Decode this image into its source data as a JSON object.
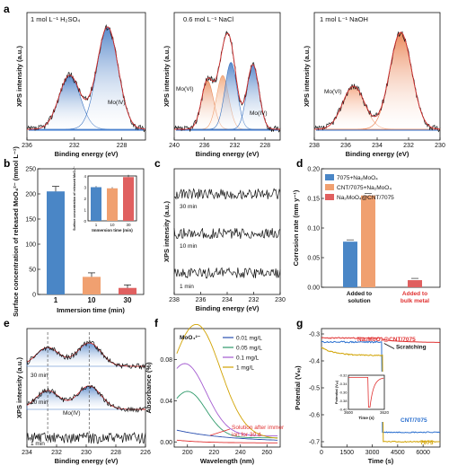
{
  "panels": {
    "a": {
      "label": "a",
      "conditions": [
        "1 mol L⁻¹ H₂SO₄",
        "0.6 mol L⁻¹ NaCl",
        "1 mol L⁻¹ NaOH"
      ],
      "xlabel": "Binding energy (eV)",
      "ylabel": "XPS intensity (a.u.)",
      "annotations": [
        "Mo(IV)",
        "Mo(VI)",
        "Mo(IV)",
        "Mo(VI)"
      ]
    },
    "b": {
      "label": "b",
      "inset_xlabel": "Immersion time (min)",
      "inset_ylabel": "Surface concentration of released MoO₄²⁻"
    },
    "c": {
      "label": "c",
      "xlabel": "Binding energy (eV)",
      "ylabel": "XPS intensity (a.u.)",
      "traces": [
        "30 min",
        "10 min",
        "1 min"
      ]
    },
    "d": {
      "label": "d"
    },
    "e": {
      "label": "e",
      "xlabel": "Binding energy (eV)",
      "ylabel": "XPS intensity (a.u.)",
      "traces": [
        "30 min",
        "10 min",
        "1 min"
      ],
      "annotation": "Mo(IV)"
    },
    "f": {
      "label": "f",
      "xlabel": "Wavelength (nm)",
      "ylabel": "Absorbance (%)",
      "ion": "MoO₄²⁻",
      "annotation": "Solution after immersion for 30 d"
    },
    "g": {
      "label": "g",
      "xlabel": "Time (s)",
      "ylabel": "Potential (Vₛₑ)",
      "inset_xlabel": "Time (s)",
      "inset_ylabel": "Potential (Vₛₑ)",
      "annotation": "Scratching"
    }
  },
  "chart_data": [
    {
      "panel": "a1",
      "type": "line",
      "xlabel": "Binding energy (eV)",
      "ylabel": "XPS intensity (a.u.)",
      "xlim": [
        236,
        226
      ],
      "xticks": [
        236,
        232,
        228
      ],
      "peaks": [
        {
          "name": "Mo(VI)",
          "center": 232.4,
          "height": 0.5
        },
        {
          "name": "Mo(IV)",
          "center": 229.2,
          "height": 0.95
        }
      ]
    },
    {
      "panel": "a2",
      "type": "line",
      "xlabel": "Binding energy (eV)",
      "ylabel": "XPS intensity (a.u.)",
      "xlim": [
        240,
        226
      ],
      "xticks": [
        240,
        236,
        232,
        228
      ],
      "peaks": [
        {
          "name": "Mo(VI)",
          "center": 235.6,
          "height": 0.45
        },
        {
          "name": "Mo(VI)",
          "center": 233.6,
          "height": 0.5
        },
        {
          "name": "Mo(IV)",
          "center": 232.5,
          "height": 0.62
        },
        {
          "name": "Mo(IV)",
          "center": 229.6,
          "height": 0.6
        }
      ]
    },
    {
      "panel": "a3",
      "type": "line",
      "xlabel": "Binding energy (eV)",
      "ylabel": "XPS intensity (a.u.)",
      "xlim": [
        238,
        230
      ],
      "xticks": [
        238,
        236,
        234,
        232,
        230
      ],
      "peaks": [
        {
          "name": "Mo(VI)",
          "center": 235.5,
          "height": 0.4
        },
        {
          "name": "Mo(VI)",
          "center": 232.5,
          "height": 0.9
        }
      ]
    },
    {
      "panel": "b",
      "type": "bar",
      "categories": [
        "1",
        "10",
        "30"
      ],
      "values": [
        205,
        35,
        13
      ],
      "errors": [
        10,
        8,
        6
      ],
      "colors": [
        "#4a86c6",
        "#f0a070",
        "#e06060"
      ],
      "xlabel": "Immersion time (min)",
      "ylabel": "Surface concentration of released MoO₄²⁻ (mmol L⁻¹)",
      "ylim": [
        0,
        250
      ],
      "yticks": [
        0,
        50,
        100,
        150,
        200,
        250
      ],
      "inset": {
        "categories": [
          "1",
          "10",
          "30"
        ],
        "values": [
          3.0,
          2.9,
          3.9
        ],
        "errors": [
          0.1,
          0.1,
          0.2
        ],
        "ylim": [
          0,
          4
        ],
        "yticks": [
          0,
          1,
          2,
          3,
          4
        ]
      }
    },
    {
      "panel": "c",
      "type": "line",
      "xlabel": "Binding energy (eV)",
      "ylabel": "XPS intensity (a.u.)",
      "xlim": [
        238,
        230
      ],
      "xticks": [
        238,
        236,
        234,
        232,
        230
      ],
      "series": [
        "30 min",
        "10 min",
        "1 min"
      ]
    },
    {
      "panel": "d",
      "type": "bar",
      "ylabel": "Corrosion rate (mm y⁻¹)",
      "ylim": [
        0,
        0.2
      ],
      "yticks": [
        0.0,
        0.05,
        0.1,
        0.15,
        0.2
      ],
      "groups": [
        "Added to solution",
        "Added to bulk metal"
      ],
      "series": [
        {
          "name": "7075+Na₂MoO₄",
          "value": 0.077,
          "color": "#4a86c6",
          "group": 0
        },
        {
          "name": "CNT/7075+Na₂MoO₄",
          "value": 0.155,
          "color": "#f0a070",
          "group": 0
        },
        {
          "name": "Na₂MoO₄@CNT/7075",
          "value": 0.012,
          "color": "#e06060",
          "group": 1
        }
      ]
    },
    {
      "panel": "e",
      "type": "line",
      "xlabel": "Binding energy (eV)",
      "ylabel": "XPS intensity (a.u.)",
      "xlim": [
        234,
        226
      ],
      "xticks": [
        234,
        232,
        230,
        228,
        226
      ],
      "series": [
        "30 min",
        "10 min",
        "1 min"
      ],
      "reference_lines": [
        232.6,
        229.8
      ]
    },
    {
      "panel": "f",
      "type": "line",
      "xlabel": "Wavelength (nm)",
      "ylabel": "Absorbance (%)",
      "xlim": [
        190,
        270
      ],
      "xticks": [
        200,
        220,
        240,
        260
      ],
      "ylim": [
        -0.005,
        0.11
      ],
      "yticks": [
        0.0,
        0.04,
        0.08
      ],
      "series": [
        {
          "name": "0.01 mg/L",
          "color": "#2a4fb0"
        },
        {
          "name": "0.05 mg/L",
          "color": "#2f9a6b"
        },
        {
          "name": "0.1 mg/L",
          "color": "#a35ad0"
        },
        {
          "name": "1 mg/L",
          "color": "#d1a200"
        },
        {
          "name": "Solution after immersion for 30 d",
          "color": "#e03030"
        }
      ]
    },
    {
      "panel": "g",
      "type": "line",
      "xlabel": "Time (s)",
      "ylabel": "Potential (Vₛₑ)",
      "xlim": [
        0,
        7000
      ],
      "xticks": [
        0,
        1500,
        3000,
        4500,
        6000
      ],
      "ylim": [
        -0.72,
        -0.28
      ],
      "yticks": [
        -0.3,
        -0.4,
        -0.5,
        -0.6,
        -0.7
      ],
      "series": [
        {
          "name": "Na₂MoO₄@CNT/7075",
          "color": "#e03030"
        },
        {
          "name": "CNT/7075",
          "color": "#2a6fcf"
        },
        {
          "name": "7075",
          "color": "#d1a200"
        }
      ],
      "inset": {
        "xlim": [
          3600,
          3620
        ],
        "xticks": [
          3600,
          3620
        ],
        "ylim": [
          -0.4,
          -0.32
        ],
        "yticks": [
          -0.32,
          -0.34,
          -0.36,
          -0.38,
          -0.4
        ]
      }
    }
  ]
}
